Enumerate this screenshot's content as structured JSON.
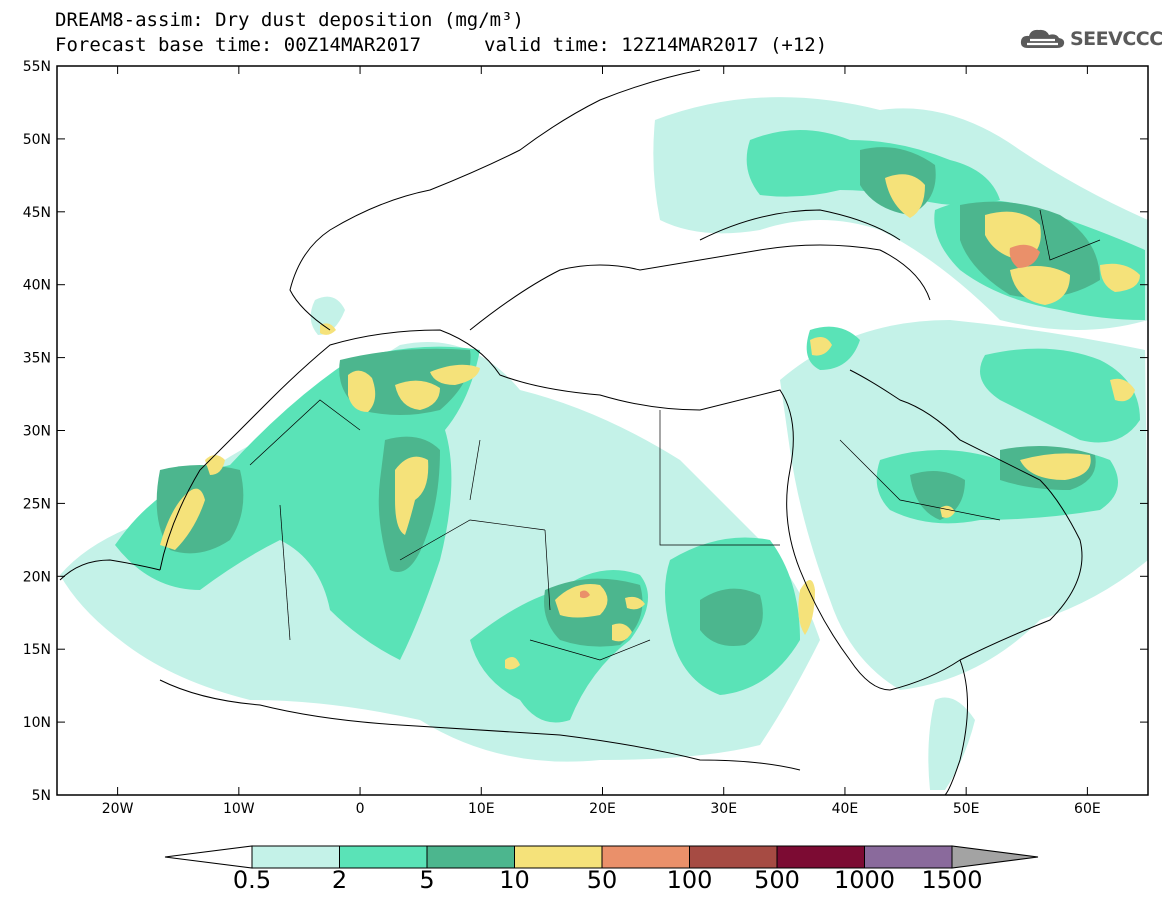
{
  "title": {
    "line1": "DREAM8-assim: Dry dust deposition (mg/m³)",
    "line2": "Forecast base time: 00Z14MAR2017",
    "valid": "valid time: 12Z14MAR2017 (+12)"
  },
  "logo": {
    "text": "SEEVCCC",
    "icon": "cloud-logo-icon"
  },
  "map": {
    "lon_range": [
      -25,
      65
    ],
    "lat_range": [
      5,
      55
    ],
    "lat_ticks": [
      "5N",
      "10N",
      "15N",
      "20N",
      "25N",
      "30N",
      "35N",
      "40N",
      "45N",
      "50N",
      "55N"
    ],
    "lat_values": [
      5,
      10,
      15,
      20,
      25,
      30,
      35,
      40,
      45,
      50,
      55
    ],
    "lon_ticks": [
      "20W",
      "10W",
      "0",
      "10E",
      "20E",
      "30E",
      "40E",
      "50E",
      "60E"
    ],
    "lon_values": [
      -20,
      -10,
      0,
      10,
      20,
      30,
      40,
      50,
      60
    ]
  },
  "colorbar": {
    "labels": [
      "0.5",
      "2",
      "5",
      "10",
      "50",
      "100",
      "500",
      "1000",
      "1500"
    ],
    "colors": [
      "#c4f2e8",
      "#5ae3b7",
      "#4cb68e",
      "#f5e27a",
      "#ea906a",
      "#a64b43",
      "#7c0b33",
      "#8a6a9c",
      "#a3a3a3"
    ],
    "below_color": "#ffffff"
  }
}
